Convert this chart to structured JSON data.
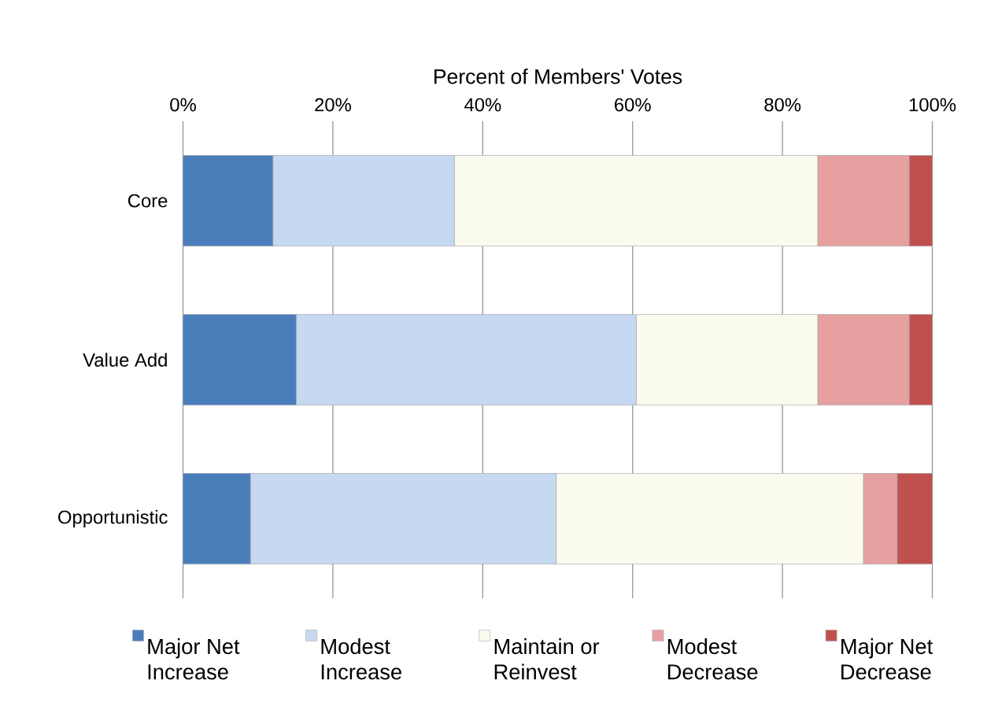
{
  "chart_data": {
    "type": "bar",
    "orientation": "horizontal",
    "stacked": true,
    "xlabel": "Percent of Members' Votes",
    "categories": [
      "Core",
      "Value Add",
      "Opportunistic"
    ],
    "series": [
      {
        "name": "Major Net Increase",
        "color": "#4a7ebb",
        "values": [
          12.0,
          15.1,
          9.0
        ]
      },
      {
        "name": "Modest Increase",
        "color": "#c6d9f1",
        "values": [
          24.2,
          45.4,
          40.8
        ]
      },
      {
        "name": "Maintain or Reinvest",
        "color": "#fafaee",
        "values": [
          48.5,
          24.2,
          41.0
        ]
      },
      {
        "name": "Modest Decrease",
        "color": "#e6a0a0",
        "values": [
          12.2,
          12.2,
          4.5
        ]
      },
      {
        "name": "Major Net Decrease",
        "color": "#c0504d",
        "values": [
          3.1,
          3.1,
          4.7
        ]
      }
    ],
    "xlim": [
      0,
      100
    ],
    "xticks": [
      {
        "value": 0,
        "label": "0%"
      },
      {
        "value": 20,
        "label": "20%"
      },
      {
        "value": 40,
        "label": "40%"
      },
      {
        "value": 60,
        "label": "60%"
      },
      {
        "value": 80,
        "label": "80%"
      },
      {
        "value": 100,
        "label": "100%"
      }
    ],
    "grid": "x",
    "legend": "bottom"
  }
}
